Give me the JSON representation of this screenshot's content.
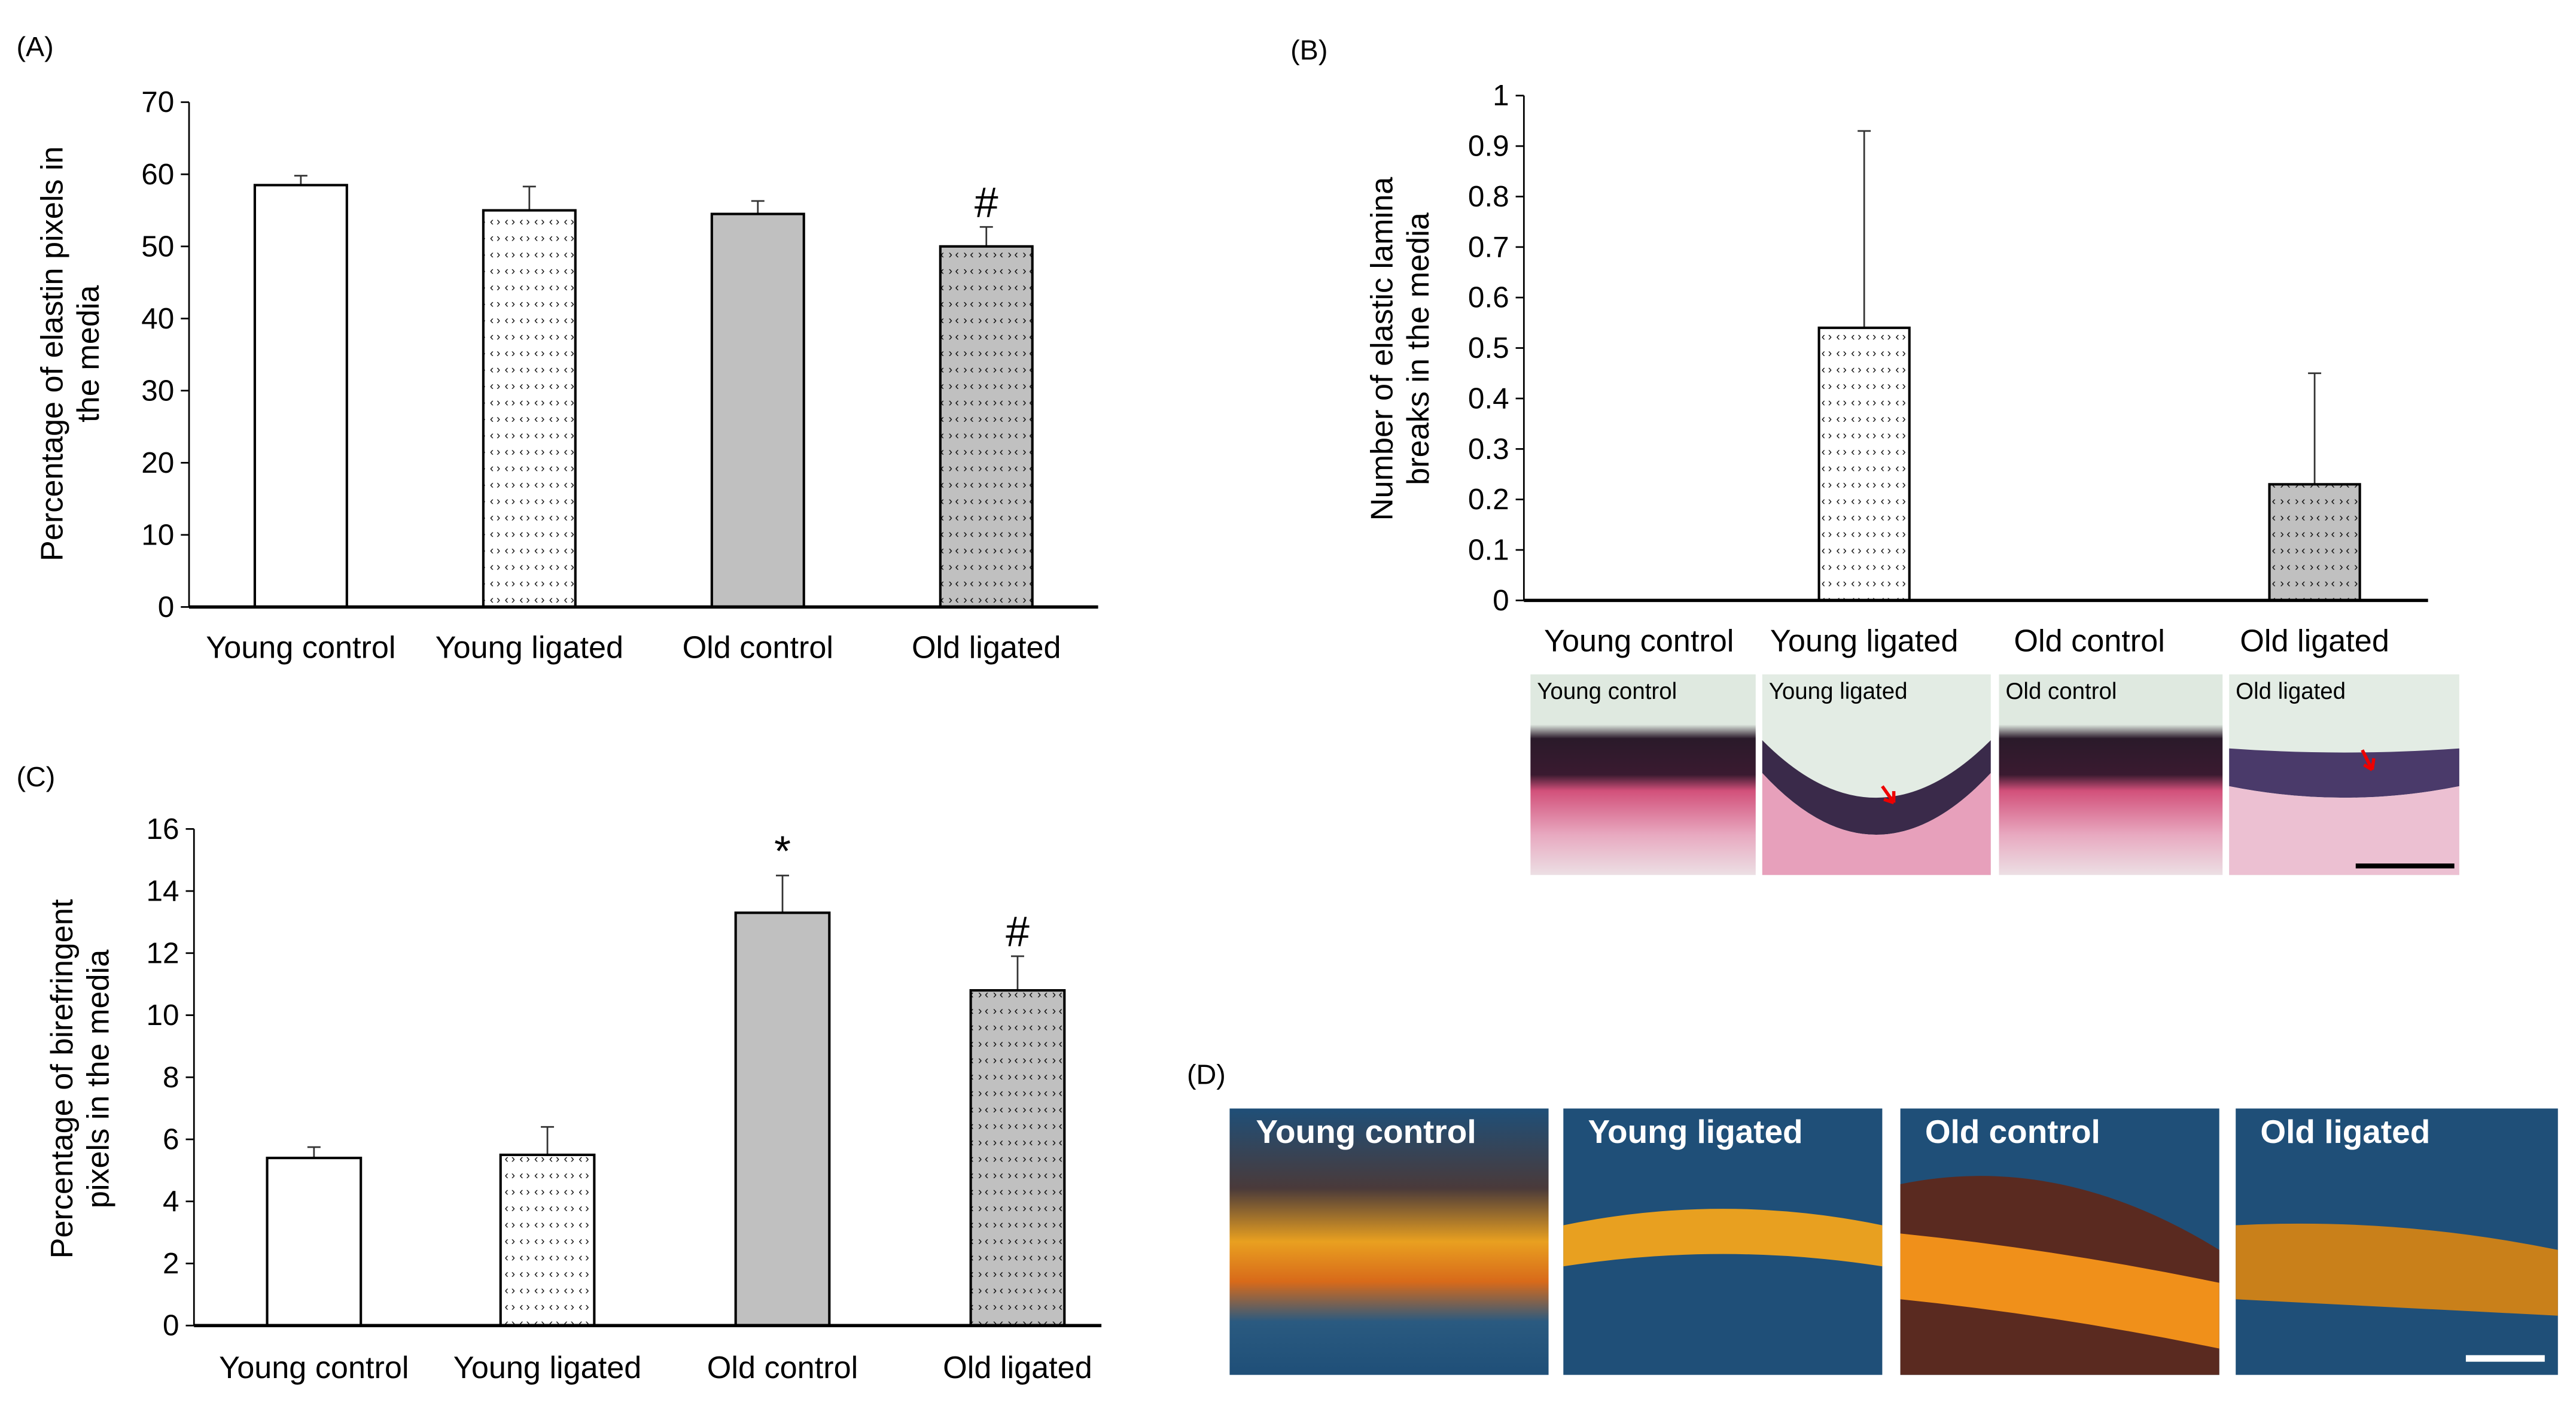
{
  "chart_data": [
    {
      "panel": "(A)",
      "type": "bar",
      "categories": [
        "Young control",
        "Young ligated",
        "Old control",
        "Old ligated"
      ],
      "values": [
        58.5,
        55.0,
        54.5,
        50.0
      ],
      "errors": [
        1.3,
        3.3,
        1.8,
        2.7
      ],
      "markers": [
        "",
        "",
        "",
        "#"
      ],
      "fills": [
        "white",
        "white-dotted",
        "gray",
        "gray-dotted"
      ],
      "ylabel": [
        "Percentage of elastin pixels in",
        "the media"
      ],
      "xlabel": "",
      "ylim": [
        0,
        70
      ],
      "yticks": [
        0,
        10,
        20,
        30,
        40,
        50,
        60,
        70
      ],
      "grid": false
    },
    {
      "panel": "(B)",
      "type": "bar",
      "categories": [
        "Young control",
        "Young ligated",
        "Old control",
        "Old ligated"
      ],
      "values": [
        0,
        0.54,
        0,
        0.23
      ],
      "errors": [
        0,
        0.39,
        0,
        0.22
      ],
      "markers": [
        "",
        "",
        "",
        ""
      ],
      "fills": [
        "white",
        "white-dotted",
        "gray",
        "gray-dotted"
      ],
      "ylabel": [
        "Number of elastic lamina",
        "breaks in the media"
      ],
      "xlabel": "",
      "ylim": [
        0,
        1
      ],
      "yticks": [
        0,
        0.1,
        0.2,
        0.3,
        0.4,
        0.5,
        0.6,
        0.7,
        0.8,
        0.9,
        1
      ],
      "grid": false,
      "images": [
        "Young control",
        "Young ligated",
        "Old control",
        "Old ligated"
      ]
    },
    {
      "panel": "(C)",
      "type": "bar",
      "categories": [
        "Young control",
        "Young ligated",
        "Old control",
        "Old ligated"
      ],
      "values": [
        5.4,
        5.5,
        13.3,
        10.8
      ],
      "errors": [
        0.35,
        0.9,
        1.2,
        1.1
      ],
      "markers": [
        "",
        "",
        "*",
        "#"
      ],
      "fills": [
        "white",
        "white-dotted",
        "gray",
        "gray-dotted"
      ],
      "ylabel": [
        "Percentage of birefringent",
        "pixels in the media"
      ],
      "xlabel": "",
      "ylim": [
        0,
        16
      ],
      "yticks": [
        0,
        2,
        4,
        6,
        8,
        10,
        12,
        14,
        16
      ],
      "grid": false
    }
  ],
  "panel_d": {
    "label": "(D)",
    "images": [
      "Young control",
      "Young ligated",
      "Old control",
      "Old ligated"
    ]
  },
  "colors": {
    "gray_bar": "#c0c0c0",
    "axis": "#000000",
    "polarized_bg": "#1f4f78"
  }
}
